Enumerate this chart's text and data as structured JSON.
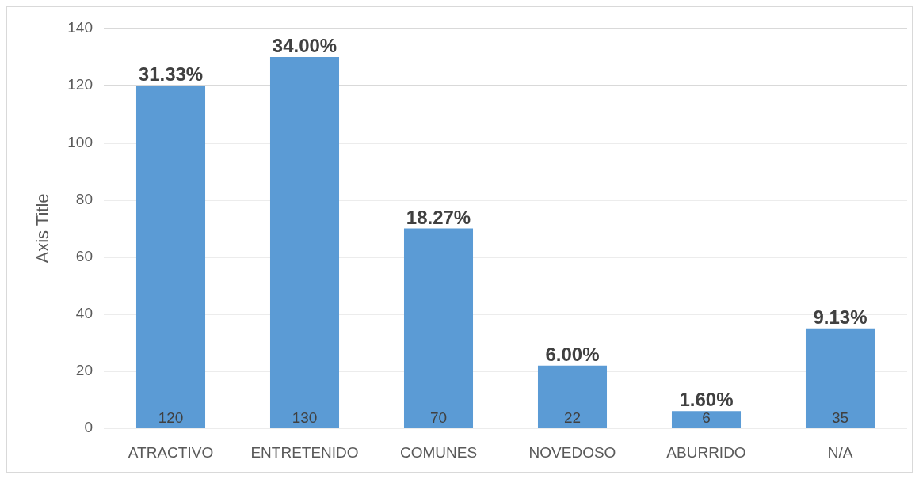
{
  "chart_data": {
    "type": "bar",
    "ylabel": "Axis Title",
    "categories": [
      "ATRACTIVO",
      "ENTRETENIDO",
      "COMUNES",
      "NOVEDOSO",
      "ABURRIDO",
      "N/A"
    ],
    "values": [
      120,
      130,
      70,
      22,
      6,
      35
    ],
    "color": "#5b9bd5",
    "ylim": [
      0,
      140
    ],
    "yticks": [
      0,
      20,
      40,
      60,
      80,
      100,
      120,
      140
    ],
    "grid": "y",
    "data_labels": true,
    "annotations": [
      {
        "text": "31.33%",
        "x": "ATRACTIVO",
        "y": 120
      },
      {
        "text": "34.00%",
        "x": "ENTRETENIDO",
        "y": 130
      },
      {
        "text": "18.27%",
        "x": "COMUNES",
        "y": 70
      },
      {
        "text": "6.00%",
        "x": "NOVEDOSO",
        "y": 22
      },
      {
        "text": "1.60%",
        "x": "ABURRIDO",
        "y": 6
      },
      {
        "text": "9.13%",
        "x": "N/A",
        "y": 35
      }
    ]
  }
}
